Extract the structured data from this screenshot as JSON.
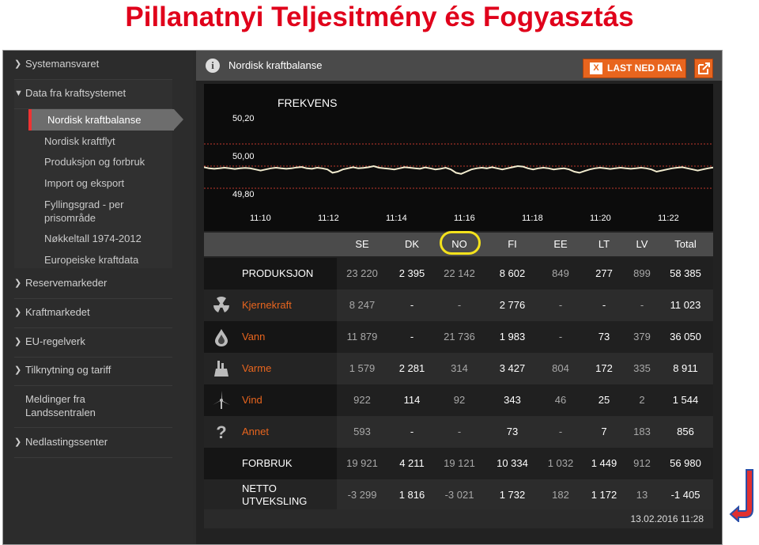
{
  "page_title": "Pillanatnyi Teljesitmény és Fogyasztás",
  "sidebar": {
    "items": [
      {
        "label": "Systemansvaret"
      },
      {
        "label": "Data fra kraftsystemet"
      },
      {
        "label": "Reservemarkeder"
      },
      {
        "label": "Kraftmarkedet"
      },
      {
        "label": "EU-regelverk"
      },
      {
        "label": "Tilknytning og tariff"
      },
      {
        "label": "Meldinger fra\nLandssentralen"
      },
      {
        "label": "Nedlastingssenter"
      }
    ],
    "subitems": [
      {
        "label": "Nordisk kraftbalanse",
        "active": true
      },
      {
        "label": "Nordisk kraftflyt"
      },
      {
        "label": "Produksjon og forbruk"
      },
      {
        "label": "Import og eksport"
      },
      {
        "label": "Fyllingsgrad - per prisområde"
      },
      {
        "label": "Nøkkeltall 1974-2012"
      },
      {
        "label": "Europeiske kraftdata"
      }
    ]
  },
  "main": {
    "title": "Nordisk kraftbalanse",
    "download_label": "LAST NED DATA",
    "timestamp": "13.02.2016 11:28"
  },
  "chart_data": {
    "type": "line",
    "title": "FREKVENS",
    "y_ticks": [
      "50,20",
      "50,00",
      "49,80"
    ],
    "x_ticks": [
      "11:10",
      "11:12",
      "11:14",
      "11:16",
      "11:18",
      "11:20",
      "11:22"
    ],
    "ylim": [
      49.8,
      50.2
    ],
    "reference_lines": [
      50.1,
      50.0,
      49.9
    ],
    "series": [
      {
        "values": [
          49.995,
          49.99,
          49.988,
          49.99,
          49.993,
          49.99,
          49.987,
          49.99,
          49.992,
          49.99,
          49.985,
          49.98,
          49.985,
          49.99,
          49.993,
          49.99,
          49.988,
          49.99,
          49.994,
          49.996,
          49.99,
          49.988,
          49.993,
          49.99,
          49.985,
          49.97,
          49.975,
          49.985,
          49.99,
          49.995,
          49.99,
          49.992,
          49.995,
          50.0,
          49.993,
          49.99,
          49.988,
          49.985,
          49.99,
          49.995,
          49.993,
          49.99,
          49.988,
          49.994,
          49.99,
          49.985,
          49.988,
          49.993,
          49.985,
          49.97,
          49.965,
          49.975,
          49.985,
          49.99,
          49.993,
          49.99,
          49.995,
          49.99,
          49.985,
          49.99,
          49.995,
          50.0,
          49.998,
          49.99,
          49.985,
          49.99,
          49.993,
          49.99,
          49.985,
          49.988,
          49.99,
          49.985,
          49.975,
          49.97,
          49.978,
          49.985,
          49.99,
          49.993,
          49.99,
          49.987,
          49.99,
          49.993,
          49.99,
          49.988,
          49.99,
          49.993,
          49.99,
          49.985,
          49.975,
          49.98,
          49.985,
          49.99,
          49.993,
          49.995,
          49.99,
          49.985,
          49.98,
          49.985,
          49.99,
          49.994
        ]
      }
    ]
  },
  "table": {
    "columns": [
      "SE",
      "DK",
      "NO",
      "FI",
      "EE",
      "LT",
      "LV",
      "Total"
    ],
    "highlight_column": "NO",
    "rows": [
      {
        "label": "PRODUKSJON",
        "icon": "",
        "color": "#ffffff",
        "values": [
          "23 220",
          "2 395",
          "22 142",
          "8 602",
          "849",
          "277",
          "899",
          "58 385"
        ]
      },
      {
        "label": "Kjernekraft",
        "icon": "radiation-icon",
        "color": "#e8651e",
        "values": [
          "8 247",
          "-",
          "-",
          "2 776",
          "-",
          "-",
          "-",
          "11 023"
        ]
      },
      {
        "label": "Vann",
        "icon": "water-drop-icon",
        "color": "#e8651e",
        "values": [
          "11 879",
          "-",
          "21 736",
          "1 983",
          "-",
          "73",
          "379",
          "36 050"
        ]
      },
      {
        "label": "Varme",
        "icon": "factory-icon",
        "color": "#e8651e",
        "values": [
          "1 579",
          "2 281",
          "314",
          "3 427",
          "804",
          "172",
          "335",
          "8 911"
        ]
      },
      {
        "label": "Vind",
        "icon": "wind-turbine-icon",
        "color": "#e8651e",
        "values": [
          "922",
          "114",
          "92",
          "343",
          "46",
          "25",
          "2",
          "1 544"
        ]
      },
      {
        "label": "Annet",
        "icon": "question-icon",
        "color": "#e8651e",
        "values": [
          "593",
          "-",
          "-",
          "73",
          "-",
          "7",
          "183",
          "856"
        ]
      },
      {
        "label": "FORBRUK",
        "icon": "",
        "color": "#ffffff",
        "values": [
          "19 921",
          "4 211",
          "19 121",
          "10 334",
          "1 032",
          "1 449",
          "912",
          "56 980"
        ]
      },
      {
        "label": "NETTO\nUTVEKSLING",
        "icon": "",
        "color": "#ffffff",
        "values": [
          "-3 299",
          "1 816",
          "-3 021",
          "1 732",
          "182",
          "1 172",
          "13",
          "-1 405"
        ]
      }
    ]
  }
}
